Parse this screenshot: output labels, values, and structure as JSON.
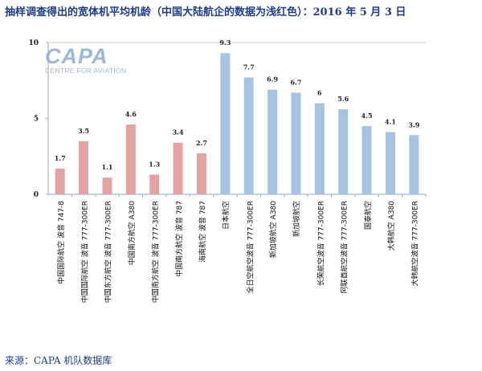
{
  "title": "抽样调查得出的宽体机平均机龄（中国大陆航企的数据为浅红色）：2016 年 5 月 3 日",
  "source": "来源：CAPA 机队数据库",
  "logo": {
    "name": "CAPA",
    "tagline": "CENTRE FOR AVIATION"
  },
  "colors": {
    "china": "#e3a3a3",
    "other": "#a7c3e3",
    "title": "#1f3c8c"
  },
  "chart_data": {
    "type": "bar",
    "title": "抽样调查得出的宽体机平均机龄（中国大陆航企的数据为浅红色）：2016 年 5 月 3 日",
    "xlabel": "",
    "ylabel": "",
    "ylim": [
      0,
      10
    ],
    "yticks": [
      0,
      5,
      10
    ],
    "categories": [
      "中国国际航空 波音 747-8",
      "中国国际航空 波音 777-300ER",
      "中国东方航空 波音 777-300ER",
      "中国南方航空 A380",
      "中国南方航空 波音 777-300ER",
      "中国南方航空 波音 787",
      "海南航空 波音 787",
      "日本航空",
      "全日空航空波音 777-300ER",
      "新加坡航空 A380",
      "新加坡航空",
      "长荣航空波音 777-300ER",
      "阿联酋航空波音 777-300ER",
      "国泰航空",
      "大韩航空 A380",
      "大韩航空波音 777-300ER"
    ],
    "values": [
      1.7,
      3.5,
      1.1,
      4.6,
      1.3,
      3.4,
      2.7,
      9.3,
      7.7,
      6.9,
      6.7,
      6,
      5.6,
      4.5,
      4.1,
      3.9
    ],
    "groups": [
      "china",
      "china",
      "china",
      "china",
      "china",
      "china",
      "china",
      "other",
      "other",
      "other",
      "other",
      "other",
      "other",
      "other",
      "other",
      "other"
    ],
    "value_labels": [
      "1.7",
      "3.5",
      "1.1",
      "4.6",
      "1.3",
      "3.4",
      "2.7",
      "9.3",
      "7.7",
      "6.9",
      "6.7",
      "6",
      "5.6",
      "4.5",
      "4.1",
      "3.9"
    ]
  }
}
